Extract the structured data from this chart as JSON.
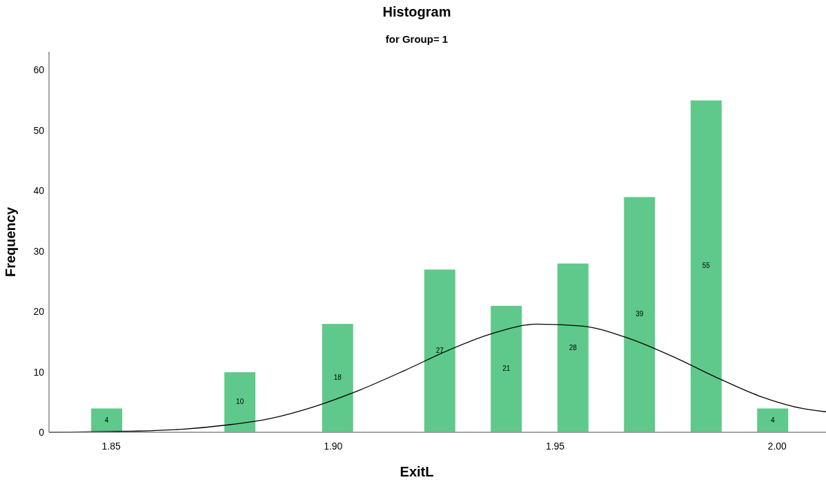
{
  "chart_data": {
    "type": "bar",
    "title": "Histogram",
    "subtitle": "for Group= 1",
    "xlabel": "ExitL",
    "ylabel": "Frequency",
    "xlim": [
      1.836,
      2.011
    ],
    "xticks": [
      {
        "value": 1.85,
        "label": "1.85"
      },
      {
        "value": 1.9,
        "label": "1.90"
      },
      {
        "value": 1.95,
        "label": "1.95"
      },
      {
        "value": 2.0,
        "label": "2.00"
      }
    ],
    "ylim": [
      0,
      63
    ],
    "yticks": [
      0,
      10,
      20,
      30,
      40,
      50,
      60
    ],
    "grid": false,
    "series": [
      {
        "color": "#5ec98a",
        "x": [
          1.849,
          1.879,
          1.901,
          1.924,
          1.939,
          1.954,
          1.969,
          1.984,
          1.999
        ],
        "values": [
          4,
          10,
          18,
          27,
          21,
          28,
          39,
          55,
          4
        ],
        "value_labels": [
          "4",
          "10",
          "18",
          "27",
          "21",
          "28",
          "39",
          "55",
          "4"
        ]
      },
      {
        "type": "line",
        "color": "#000000",
        "x": [
          1.836,
          1.846,
          1.856,
          1.866,
          1.876,
          1.886,
          1.896,
          1.906,
          1.916,
          1.926,
          1.936,
          1.946,
          1.956,
          1.966,
          1.976,
          1.986,
          1.996,
          2.006,
          2.011
        ],
        "values": [
          0,
          0.1,
          0.2,
          0.5,
          1.2,
          2.3,
          4.3,
          7,
          10.2,
          13.6,
          16.4,
          17.9,
          17.6,
          15.7,
          12.7,
          9.2,
          6,
          3.9,
          3.4
        ]
      }
    ]
  }
}
